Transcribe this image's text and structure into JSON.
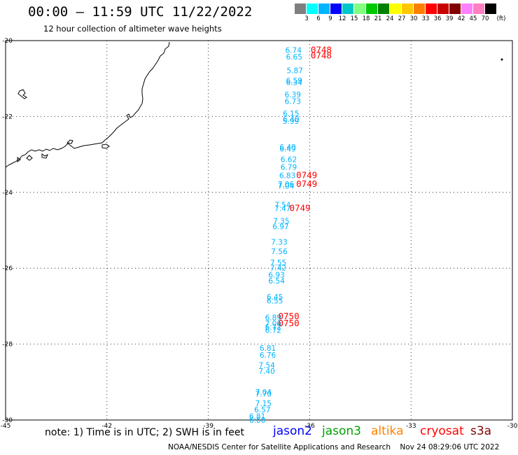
{
  "header": {
    "title": "00:00 — 11:59 UTC 11/22/2022",
    "subtitle": "12 hour collection of altimeter wave heights"
  },
  "legend": {
    "unit_label": "(ft)",
    "ticks": [
      "3",
      "6",
      "9",
      "12",
      "15",
      "18",
      "21",
      "24",
      "27",
      "30",
      "33",
      "36",
      "39",
      "42",
      "45",
      "70"
    ],
    "colors": [
      "#7f7f7f",
      "#00ffff",
      "#00b4ff",
      "#0000ff",
      "#00c8c8",
      "#80ff80",
      "#00c800",
      "#008000",
      "#ffff00",
      "#ffc800",
      "#ff8000",
      "#ff0000",
      "#c80000",
      "#800000",
      "#ff80ff",
      "#ff80c0",
      "#000000"
    ]
  },
  "map": {
    "lon_labels": [
      "-45",
      "-42",
      "-39",
      "-36",
      "-33",
      "-30"
    ],
    "lat_labels": [
      "-20",
      "-22",
      "-24",
      "-26",
      "-28",
      "-30"
    ],
    "lon_range": [
      -45,
      -30
    ],
    "lat_range": [
      -20,
      -30
    ],
    "grid": "dotted",
    "swh_color": "#00b4ff",
    "time_color": "#ff0000",
    "swh_points": [
      {
        "lat": -20.25,
        "lon": -36.48,
        "v": "6.74"
      },
      {
        "lat": -20.42,
        "lon": -36.46,
        "v": "6.65"
      },
      {
        "lat": -20.78,
        "lon": -36.44,
        "v": "5.87"
      },
      {
        "lat": -21.05,
        "lon": -36.46,
        "v": "6.59"
      },
      {
        "lat": -21.1,
        "lon": -36.46,
        "v": "6.34"
      },
      {
        "lat": -21.42,
        "lon": -36.5,
        "v": "6.39"
      },
      {
        "lat": -21.6,
        "lon": -36.5,
        "v": "6.73"
      },
      {
        "lat": -21.92,
        "lon": -36.55,
        "v": "6.15"
      },
      {
        "lat": -22.07,
        "lon": -36.55,
        "v": "6.40"
      },
      {
        "lat": -22.12,
        "lon": -36.56,
        "v": "5.99"
      },
      {
        "lat": -22.8,
        "lon": -36.65,
        "v": "6.40"
      },
      {
        "lat": -22.85,
        "lon": -36.65,
        "v": "6.49"
      },
      {
        "lat": -23.13,
        "lon": -36.62,
        "v": "6.62"
      },
      {
        "lat": -23.33,
        "lon": -36.62,
        "v": "6.79"
      },
      {
        "lat": -23.55,
        "lon": -36.66,
        "v": "6.83"
      },
      {
        "lat": -23.78,
        "lon": -36.7,
        "v": "7.06"
      },
      {
        "lat": -23.83,
        "lon": -36.7,
        "v": "7.04"
      },
      {
        "lat": -24.33,
        "lon": -36.8,
        "v": "7.54"
      },
      {
        "lat": -24.42,
        "lon": -36.8,
        "v": "7.47"
      },
      {
        "lat": -24.75,
        "lon": -36.84,
        "v": "7.35"
      },
      {
        "lat": -24.9,
        "lon": -36.86,
        "v": "6.97"
      },
      {
        "lat": -25.3,
        "lon": -36.9,
        "v": "7.33"
      },
      {
        "lat": -25.55,
        "lon": -36.9,
        "v": "7.56"
      },
      {
        "lat": -25.85,
        "lon": -36.93,
        "v": "7.55"
      },
      {
        "lat": -25.99,
        "lon": -36.93,
        "v": "7.42"
      },
      {
        "lat": -26.17,
        "lon": -36.98,
        "v": "6.93"
      },
      {
        "lat": -26.33,
        "lon": -36.98,
        "v": "6.54"
      },
      {
        "lat": -26.75,
        "lon": -37.03,
        "v": "6.45"
      },
      {
        "lat": -26.85,
        "lon": -37.03,
        "v": "6.55"
      },
      {
        "lat": -27.3,
        "lon": -37.08,
        "v": "6.89"
      },
      {
        "lat": -27.45,
        "lon": -37.08,
        "v": "7.06"
      },
      {
        "lat": -27.55,
        "lon": -37.08,
        "v": "6.72"
      },
      {
        "lat": -27.63,
        "lon": -37.08,
        "v": "6.72"
      },
      {
        "lat": -28.1,
        "lon": -37.24,
        "v": "6.81"
      },
      {
        "lat": -28.28,
        "lon": -37.24,
        "v": "6.76"
      },
      {
        "lat": -28.55,
        "lon": -37.27,
        "v": "7.54"
      },
      {
        "lat": -28.71,
        "lon": -37.27,
        "v": "7.40"
      },
      {
        "lat": -29.26,
        "lon": -37.37,
        "v": "7.04"
      },
      {
        "lat": -29.31,
        "lon": -37.37,
        "v": "7.70"
      },
      {
        "lat": -29.56,
        "lon": -37.37,
        "v": "7.15"
      },
      {
        "lat": -29.72,
        "lon": -37.4,
        "v": "6.57"
      },
      {
        "lat": -29.9,
        "lon": -37.55,
        "v": "6.81"
      },
      {
        "lat": -30.0,
        "lon": -37.55,
        "v": "6.60"
      }
    ],
    "time_points": [
      {
        "lat": -20.25,
        "lon": -35.97,
        "v": "0748"
      },
      {
        "lat": -20.4,
        "lon": -35.97,
        "v": "0748"
      },
      {
        "lat": -23.55,
        "lon": -36.4,
        "v": "0749"
      },
      {
        "lat": -23.78,
        "lon": -36.4,
        "v": "0749"
      },
      {
        "lat": -24.42,
        "lon": -36.6,
        "v": "0749"
      },
      {
        "lat": -27.27,
        "lon": -36.93,
        "v": "0750"
      },
      {
        "lat": -27.45,
        "lon": -36.93,
        "v": "0750"
      }
    ]
  },
  "footer": {
    "note": "note: 1) Time is in UTC; 2) SWH is in feet",
    "satellites": [
      {
        "name": "jason2",
        "color": "#0000ff"
      },
      {
        "name": "jason3",
        "color": "#00a000"
      },
      {
        "name": "altika",
        "color": "#ff8000"
      },
      {
        "name": "cryosat",
        "color": "#ff0000"
      },
      {
        "name": "s3a",
        "color": "#800000"
      }
    ],
    "credit": "NOAA/NESDIS Center for Satellite Applications and Research    Nov 24 08:29:06 UTC 2022"
  }
}
